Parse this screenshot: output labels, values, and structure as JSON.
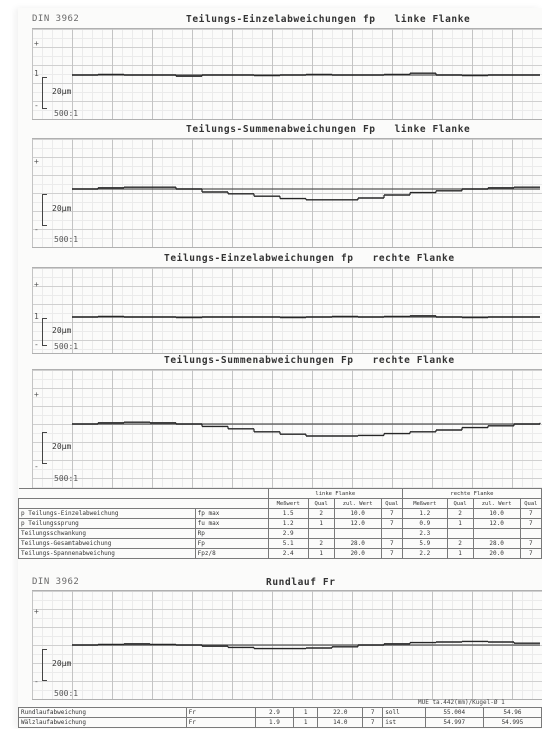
{
  "doc_id": "DIN 3962",
  "charts": [
    {
      "title": "Teilungs-Einzelabweichungen fp   linke Flanke",
      "scale": "20µm",
      "ratio": "500:1",
      "mark_top": "+",
      "mark_mid": "1",
      "mark_bot": "-"
    },
    {
      "title": "Teilungs-Summenabweichungen Fp   linke Flanke",
      "scale": "20µm",
      "ratio": "500:1",
      "mark_top": "+",
      "mark_mid": "",
      "mark_bot": "-"
    },
    {
      "title": "Teilungs-Einzelabweichungen fp   rechte Flanke",
      "scale": "20µm",
      "ratio": "500:1",
      "mark_top": "+",
      "mark_mid": "1",
      "mark_bot": "-"
    },
    {
      "title": "Teilungs-Summenabweichungen Fp   rechte Flanke",
      "scale": "20µm",
      "ratio": "500:1",
      "mark_top": "+",
      "mark_mid": "",
      "mark_bot": "-"
    }
  ],
  "table": {
    "group_left": "linke Flanke",
    "group_right": "rechte Flanke",
    "headers": [
      "Meßwert",
      "Qual",
      "zul. Wert",
      "Qual",
      "Meßwert",
      "Qual",
      "zul. Wert",
      "Qual"
    ],
    "rows": [
      {
        "label": "p Teilungs-Einzelabweichung",
        "symbol": "fp max",
        "cells": [
          "1.5",
          "2",
          "10.0",
          "7",
          "1.2",
          "2",
          "10.0",
          "7"
        ]
      },
      {
        "label": "p Teilungssprung",
        "symbol": "fu max",
        "cells": [
          "1.2",
          "1",
          "12.0",
          "7",
          "0.9",
          "1",
          "12.0",
          "7"
        ]
      },
      {
        "label": "Teilungsschwankung",
        "symbol": "Rp",
        "cells": [
          "2.9",
          "",
          "",
          "",
          "2.3",
          "",
          "",
          ""
        ]
      },
      {
        "label": "Teilungs-Gesamtabweichung",
        "symbol": "Fp",
        "cells": [
          "5.1",
          "2",
          "28.0",
          "7",
          "5.9",
          "2",
          "28.0",
          "7"
        ]
      },
      {
        "label": "Teilungs-Spannenabweichung",
        "symbol": "Fpz/8",
        "cells": [
          "2.4",
          "1",
          "20.0",
          "7",
          "2.2",
          "1",
          "20.0",
          "7"
        ]
      }
    ]
  },
  "runout": {
    "doc_id": "DIN 3962",
    "title": "Rundlauf Fr",
    "scale": "20µm",
    "ratio": "500:1",
    "mark_top": "+",
    "mark_bot": "-",
    "note": "MUE ta.442(mm)/Kugel-Ø 1",
    "rows": [
      {
        "label": "Rundlaufabweichung",
        "symbol": "Fr",
        "cells": [
          "2.9",
          "1",
          "22.0",
          "7"
        ],
        "extra": [
          "soll",
          "55.004",
          "54.96"
        ]
      },
      {
        "label": "Wälzlaufabweichung",
        "symbol": "Fr",
        "cells": [
          "1.9",
          "1",
          "14.0",
          "7"
        ],
        "extra": [
          "ist",
          "54.997",
          "54.995"
        ]
      }
    ]
  },
  "chart_data": [
    {
      "type": "line",
      "title": "Teilungs-Einzelabweichungen fp   linke Flanke",
      "series": [
        {
          "values": [
            0,
            0.1,
            0,
            0,
            -0.2,
            0,
            0,
            -0.1,
            0,
            0.1,
            0,
            0,
            0.1,
            0.3,
            0,
            -0.1,
            0,
            0,
            0
          ]
        }
      ],
      "unit": "µm"
    },
    {
      "type": "line",
      "title": "Teilungs-Summenabweichungen Fp   linke Flanke",
      "series": [
        {
          "values": [
            0,
            0.2,
            0.3,
            0.3,
            0,
            -0.5,
            -0.8,
            -1.2,
            -1.6,
            -1.8,
            -1.8,
            -1.5,
            -1,
            -0.6,
            -0.3,
            0,
            0.2,
            0.3,
            0.3
          ]
        }
      ],
      "unit": "µm"
    },
    {
      "type": "line",
      "title": "Teilungs-Einzelabweichungen fp   rechte Flanke",
      "series": [
        {
          "values": [
            0,
            0.1,
            0,
            0,
            -0.1,
            0,
            0,
            0,
            -0.1,
            0,
            0.1,
            0,
            0.1,
            0.2,
            0,
            -0.1,
            0,
            0,
            0
          ]
        }
      ],
      "unit": "µm"
    },
    {
      "type": "line",
      "title": "Teilungs-Summenabweichungen Fp   rechte Flanke",
      "series": [
        {
          "values": [
            0,
            0.2,
            0.3,
            0.2,
            0,
            -0.4,
            -0.8,
            -1.3,
            -1.7,
            -2,
            -2,
            -1.9,
            -1.6,
            -1.3,
            -1,
            -0.6,
            -0.3,
            0,
            0.2
          ]
        }
      ],
      "unit": "µm"
    },
    {
      "type": "line",
      "title": "Rundlauf Fr",
      "series": [
        {
          "values": [
            0,
            0.1,
            0.2,
            0.1,
            0,
            -0.2,
            -0.4,
            -0.6,
            -0.6,
            -0.5,
            -0.3,
            0,
            0.2,
            0.4,
            0.5,
            0.6,
            0.5,
            0.3,
            0.3
          ]
        }
      ],
      "unit": "µm"
    }
  ]
}
